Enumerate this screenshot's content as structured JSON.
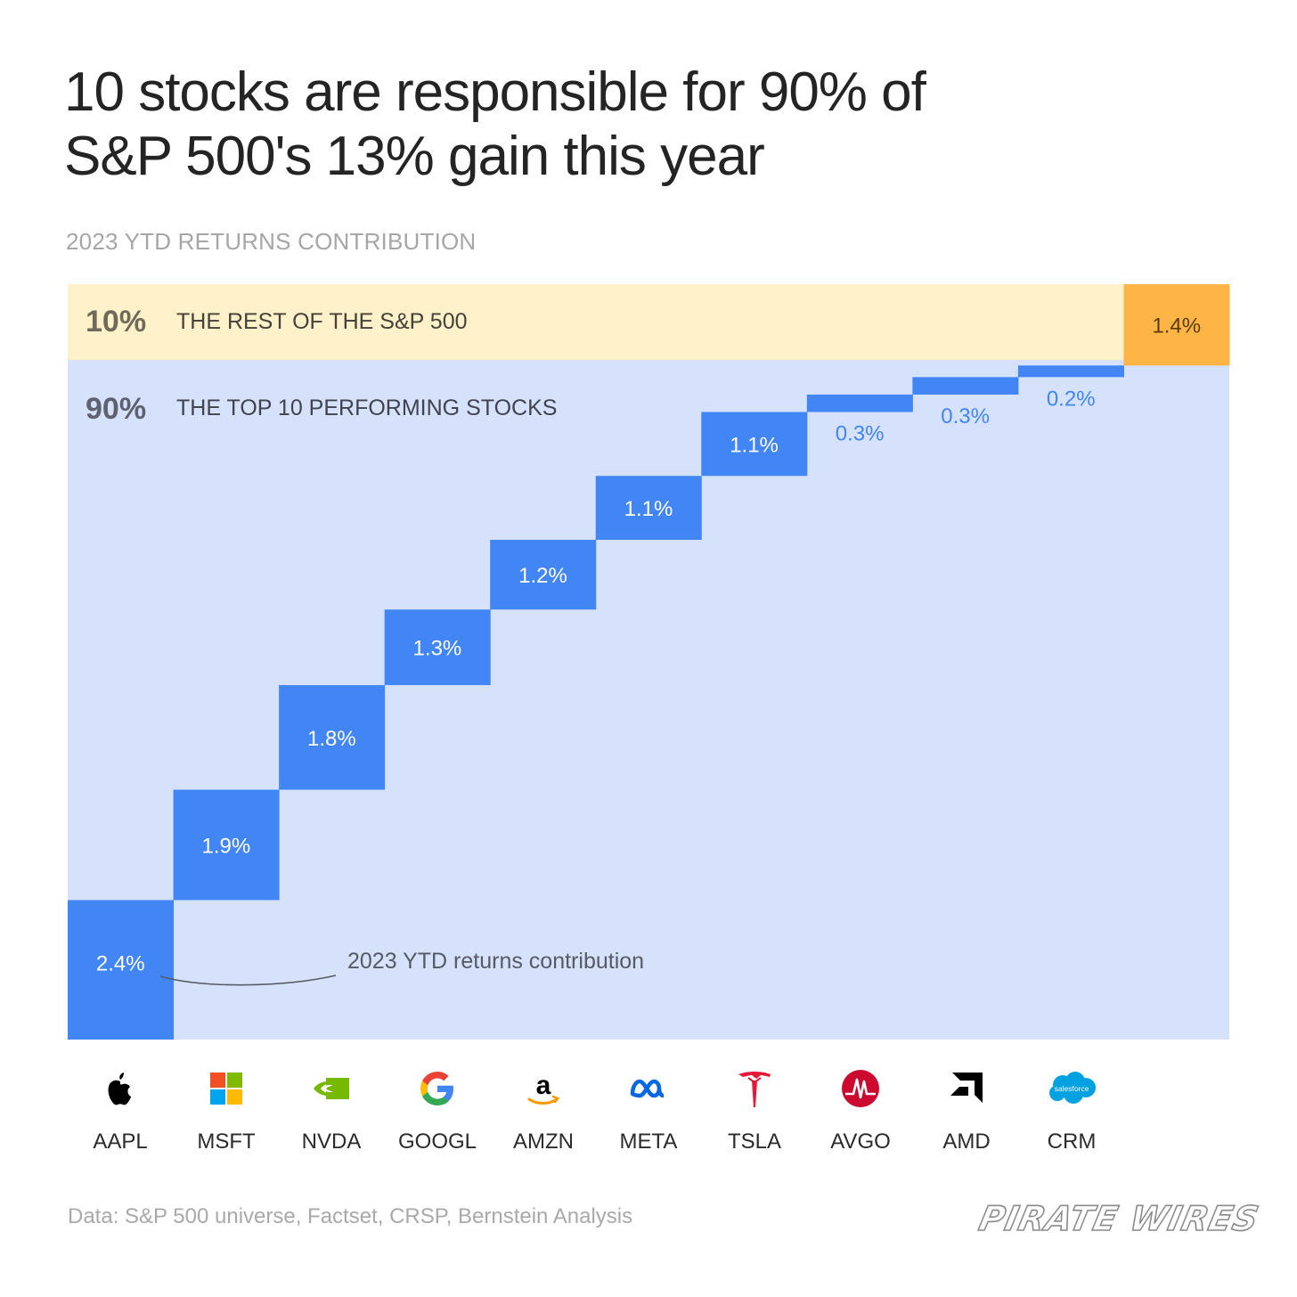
{
  "title_lines": [
    "10 stocks are responsible for 90% of",
    "S&P 500's 13% gain this year"
  ],
  "subtitle": "2023 YTD RETURNS CONTRIBUTION",
  "source": "Data: S&P 500 universe, Factset, CRSP, Bernstein Analysis",
  "brand": "PIRATE WIRES",
  "colors": {
    "bar": "#4285F4",
    "top10_band": "#D6E2FC",
    "rest_band": "#FFF1C9",
    "rest_bar": "#FFB446",
    "bar_label_inside": "#ffffff",
    "bar_label_outside": "#4285F4"
  },
  "chart_data": {
    "type": "bar",
    "subtype": "waterfall",
    "total_gain_percent": 13,
    "categories": [
      "AAPL",
      "MSFT",
      "NVDA",
      "GOOGL",
      "AMZN",
      "META",
      "TSLA",
      "AVGO",
      "AMD",
      "CRM",
      "Rest"
    ],
    "values": [
      2.4,
      1.9,
      1.8,
      1.3,
      1.2,
      1.1,
      1.1,
      0.3,
      0.3,
      0.2,
      1.4
    ],
    "value_labels": [
      "2.4%",
      "1.9%",
      "1.8%",
      "1.3%",
      "1.2%",
      "1.1%",
      "1.1%",
      "0.3%",
      "0.3%",
      "0.2%",
      "1.4%"
    ],
    "groups": [
      {
        "share": "90%",
        "label": "THE TOP 10 PERFORMING STOCKS"
      },
      {
        "share": "10%",
        "label": "THE REST OF THE S&P 500"
      }
    ],
    "annotation": "2023 YTD returns contribution",
    "grid": false,
    "legend": "none"
  },
  "logos": [
    {
      "ticker": "AAPL",
      "icon": "apple-logo-icon"
    },
    {
      "ticker": "MSFT",
      "icon": "microsoft-logo-icon"
    },
    {
      "ticker": "NVDA",
      "icon": "nvidia-logo-icon"
    },
    {
      "ticker": "GOOGL",
      "icon": "google-logo-icon"
    },
    {
      "ticker": "AMZN",
      "icon": "amazon-logo-icon"
    },
    {
      "ticker": "META",
      "icon": "meta-logo-icon"
    },
    {
      "ticker": "TSLA",
      "icon": "tesla-logo-icon"
    },
    {
      "ticker": "AVGO",
      "icon": "broadcom-logo-icon"
    },
    {
      "ticker": "AMD",
      "icon": "amd-logo-icon"
    },
    {
      "ticker": "CRM",
      "icon": "salesforce-logo-icon",
      "logo_text": "salesforce"
    }
  ]
}
